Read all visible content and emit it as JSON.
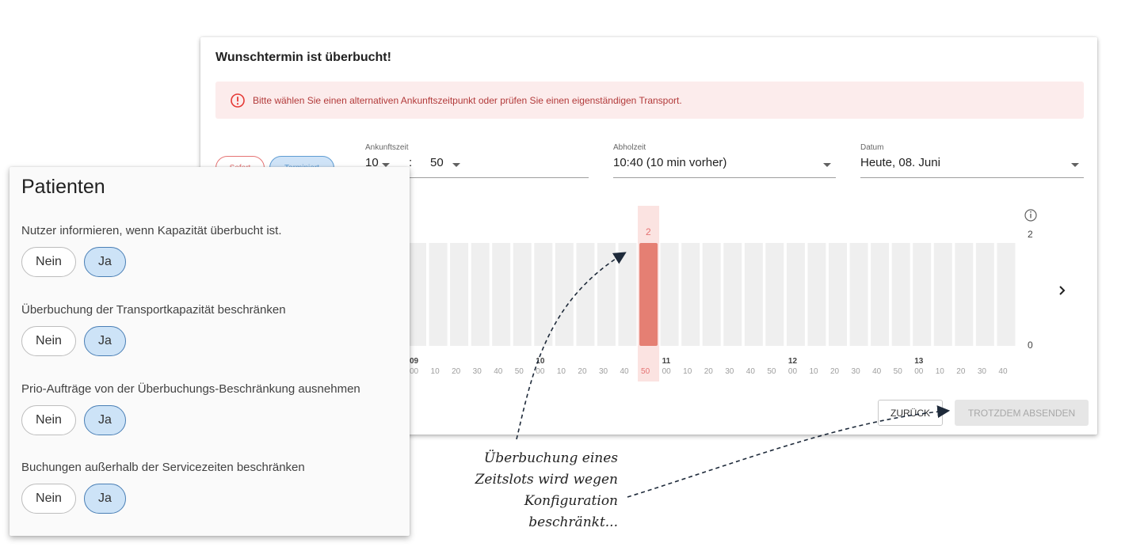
{
  "dialog": {
    "title": "Wunschtermin ist überbucht!",
    "alert": {
      "icon": "error-icon",
      "color": "#e53935",
      "text": "Bitte wählen Sie einen alternativen Ankunftszeitpunkt oder prüfen Sie einen eigenständigen Transport."
    },
    "mode_buttons": {
      "sofort": "Sofort",
      "terminiert": "Terminiert",
      "selected": "terminiert"
    },
    "arrival": {
      "label": "Ankunftszeit",
      "hour": "10",
      "separator": ":",
      "minute": "50"
    },
    "pickup": {
      "label": "Abholzeit",
      "value": "10:40 (10 min vorher)"
    },
    "date": {
      "label": "Datum",
      "value": "Heute, 08. Juni"
    },
    "next_icon": "chevron-right-icon",
    "info_icon": "info-icon",
    "back_label": "ZURÜCK",
    "submit_label": "TROTZDEM ABSENDEN"
  },
  "chart_data": {
    "type": "bar",
    "y_ticks": [
      "2",
      "0"
    ],
    "ylim": [
      0,
      2
    ],
    "hour_labels": [
      {
        "label": "09",
        "at_index": 0
      },
      {
        "label": "10",
        "at_index": 6
      },
      {
        "label": "11",
        "at_index": 12
      },
      {
        "label": "12",
        "at_index": 18
      },
      {
        "label": "13",
        "at_index": 24
      }
    ],
    "categories": [
      "00",
      "10",
      "20",
      "30",
      "40",
      "50",
      "00",
      "10",
      "20",
      "30",
      "40",
      "50",
      "00",
      "10",
      "20",
      "30",
      "40",
      "50",
      "00",
      "10",
      "20",
      "30",
      "40",
      "50",
      "00",
      "10",
      "20",
      "30",
      "40"
    ],
    "values": [
      0,
      0,
      0,
      0,
      0,
      0,
      0,
      0,
      0,
      0,
      0,
      2,
      0,
      0,
      0,
      0,
      0,
      0,
      0,
      0,
      0,
      0,
      0,
      0,
      0,
      0,
      0,
      0,
      0
    ],
    "highlight_index": 11,
    "highlight_value_label": "2",
    "bar_color": "#efefef",
    "highlight_color": "#e57f73",
    "highlight_bg": "#fbe3e1"
  },
  "settings": {
    "title": "Patienten",
    "options_no": "Nein",
    "options_yes": "Ja",
    "items": [
      {
        "label": "Nutzer informieren, wenn Kapazität überbucht ist.",
        "value": "Ja"
      },
      {
        "label": "Überbuchung der Transportkapazität beschränken",
        "value": "Ja"
      },
      {
        "label": "Prio-Aufträge von der Überbuchungs-Beschränkung ausnehmen",
        "value": "Ja"
      },
      {
        "label": "Buchungen außerhalb der Servicezeiten beschränken",
        "value": "Ja"
      }
    ]
  },
  "annotation": {
    "lines": [
      "Überbuchung eines",
      "Zeitslots wird wegen",
      "Konfiguration",
      "beschränkt..."
    ]
  }
}
